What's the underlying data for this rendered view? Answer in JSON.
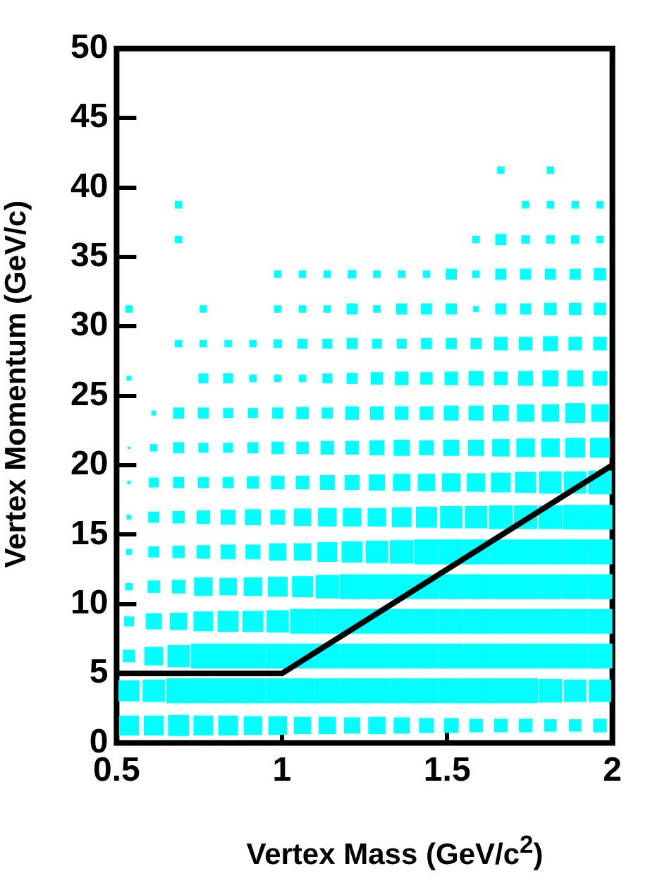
{
  "chart_data": {
    "type": "bubble",
    "xlabel": "Vertex Mass (GeV/c$^{2}$)",
    "ylabel": "Vertex Momentum (GeV/c)",
    "xlim": [
      0.5,
      2
    ],
    "xticks": [
      {
        "value": 0.5,
        "label": "0.5"
      },
      1,
      {
        "value": 1.5,
        "label": "1.5"
      },
      2
    ],
    "ylim": [
      0,
      50
    ],
    "yticks": [
      0,
      5,
      10,
      15,
      20,
      25,
      30,
      35,
      40,
      45,
      50
    ],
    "grid": false,
    "legend": false,
    "marker": "square",
    "x": [
      0.5375,
      0.6125,
      0.6875,
      0.7625,
      0.8375,
      0.9125,
      0.9875,
      1.0625,
      1.1375,
      1.2125,
      1.2875,
      1.3625,
      1.4375,
      1.5125,
      1.5875,
      1.6625,
      1.7375,
      1.8125,
      1.8875,
      1.9625
    ],
    "series": [
      {
        "color": "#00ffff",
        "values": [
          1.25,
          1.25,
          1.25,
          1.25,
          1.25,
          1.25,
          1.25,
          1.25,
          1.25,
          1.25,
          1.25,
          1.25,
          1.25,
          1.25,
          1.25,
          1.25,
          1.25,
          1.25,
          1.25,
          1.25
        ],
        "sizes": [
          0.64,
          0.64,
          0.72,
          0.64,
          0.64,
          0.56,
          0.56,
          0.49,
          0.49,
          0.42,
          0.49,
          0.42,
          0.36,
          0.36,
          0.3,
          0.3,
          0.3,
          0.25,
          0.25,
          0.3
        ]
      },
      {
        "color": "#00ffff",
        "values": [
          3.75,
          3.75,
          3.75,
          3.75,
          3.75,
          3.75,
          3.75,
          3.75,
          3.75,
          3.75,
          3.75,
          3.75,
          3.75,
          3.75,
          3.75,
          3.75,
          3.75,
          3.75,
          3.75,
          3.75
        ],
        "sizes": [
          0.72,
          0.81,
          1,
          1,
          1,
          1,
          1,
          1,
          1,
          1,
          1,
          1,
          1,
          1,
          1,
          1,
          1,
          0.9,
          0.81,
          0.81
        ]
      },
      {
        "color": "#00ffff",
        "values": [
          6.25,
          6.25,
          6.25,
          6.25,
          6.25,
          6.25,
          6.25,
          6.25,
          6.25,
          6.25,
          6.25,
          6.25,
          6.25,
          6.25,
          6.25,
          6.25,
          6.25,
          6.25,
          6.25,
          6.25
        ],
        "sizes": [
          0.25,
          0.56,
          0.81,
          1,
          1,
          1,
          1,
          1,
          1,
          1,
          1,
          1,
          1,
          1,
          1,
          1,
          1,
          1,
          1,
          1
        ]
      },
      {
        "color": "#00ffff",
        "values": [
          8.75,
          8.75,
          8.75,
          8.75,
          8.75,
          8.75,
          8.75,
          8.75,
          8.75,
          8.75,
          8.75,
          8.75,
          8.75,
          8.75,
          8.75,
          8.75,
          8.75,
          8.75,
          8.75,
          8.75
        ],
        "sizes": [
          0.16,
          0.42,
          0.49,
          0.64,
          0.72,
          0.72,
          0.81,
          1,
          1,
          1,
          1,
          1,
          1,
          1,
          1,
          1,
          1,
          1,
          1,
          1
        ]
      },
      {
        "color": "#00ffff",
        "values": [
          11.25,
          11.25,
          11.25,
          11.25,
          11.25,
          11.25,
          11.25,
          11.25,
          11.25,
          11.25,
          11.25,
          11.25,
          11.25,
          11.25,
          11.25,
          11.25,
          11.25,
          11.25,
          11.25,
          11.25
        ],
        "sizes": [
          0.09,
          0.25,
          0.3,
          0.56,
          0.49,
          0.56,
          0.64,
          0.72,
          0.9,
          1,
          1,
          1,
          1,
          1,
          1,
          1,
          1,
          1,
          1,
          1
        ]
      },
      {
        "color": "#00ffff",
        "values": [
          13.75,
          13.75,
          13.75,
          13.75,
          13.75,
          13.75,
          13.75,
          13.75,
          13.75,
          13.75,
          13.75,
          13.75,
          13.75,
          13.75,
          13.75,
          13.75,
          13.75,
          13.75,
          13.75,
          13.75
        ],
        "sizes": [
          0.06,
          0.2,
          0.25,
          0.3,
          0.36,
          0.36,
          0.49,
          0.49,
          0.64,
          0.72,
          0.81,
          0.9,
          1,
          1,
          1,
          1,
          1,
          1,
          1,
          1
        ]
      },
      {
        "color": "#00ffff",
        "values": [
          16.25,
          16.25,
          16.25,
          16.25,
          16.25,
          16.25,
          16.25,
          16.25,
          16.25,
          16.25,
          16.25,
          16.25,
          16.25,
          16.25,
          16.25,
          16.25,
          16.25,
          16.25,
          16.25,
          16.25
        ],
        "sizes": [
          0.04,
          0.2,
          0.25,
          0.3,
          0.36,
          0.42,
          0.36,
          0.49,
          0.56,
          0.56,
          0.56,
          0.64,
          0.72,
          0.81,
          0.81,
          0.9,
          0.9,
          0.9,
          1,
          1
        ]
      },
      {
        "color": "#00ffff",
        "values": [
          18.75,
          18.75,
          18.75,
          18.75,
          18.75,
          18.75,
          18.75,
          18.75,
          18.75,
          18.75,
          18.75,
          18.75,
          18.75,
          18.75,
          18.75,
          18.75,
          18.75,
          18.75,
          18.75,
          18.75
        ],
        "sizes": [
          0.02,
          0.16,
          0.2,
          0.2,
          0.2,
          0.25,
          0.3,
          0.3,
          0.36,
          0.36,
          0.42,
          0.49,
          0.49,
          0.56,
          0.56,
          0.64,
          0.72,
          0.81,
          0.81,
          0.9
        ]
      },
      {
        "color": "#00ffff",
        "values": [
          21.25,
          21.25,
          21.25,
          21.25,
          21.25,
          21.25,
          21.25,
          21.25,
          21.25,
          21.25,
          21.25,
          21.25,
          21.25,
          21.25,
          21.25,
          21.25,
          21.25,
          21.25,
          21.25,
          21.25
        ],
        "sizes": [
          0.01,
          0.09,
          0.2,
          0.16,
          0.16,
          0.2,
          0.25,
          0.25,
          0.3,
          0.3,
          0.36,
          0.42,
          0.36,
          0.42,
          0.42,
          0.49,
          0.56,
          0.56,
          0.64,
          0.64
        ]
      },
      {
        "color": "#00ffff",
        "values": [
          null,
          23.75,
          23.75,
          23.75,
          23.75,
          23.75,
          23.75,
          23.75,
          23.75,
          23.75,
          23.75,
          23.75,
          23.75,
          23.75,
          23.75,
          23.75,
          23.75,
          23.75,
          23.75,
          23.75
        ],
        "sizes": [
          null,
          0.04,
          0.2,
          0.2,
          0.16,
          0.16,
          0.2,
          0.25,
          0.2,
          0.3,
          0.3,
          0.3,
          0.3,
          0.36,
          0.36,
          0.42,
          0.49,
          0.49,
          0.64,
          0.49
        ]
      },
      {
        "color": "#00ffff",
        "values": [
          26.25,
          null,
          null,
          26.25,
          26.25,
          26.25,
          26.25,
          26.25,
          26.25,
          26.25,
          26.25,
          26.25,
          26.25,
          26.25,
          26.25,
          26.25,
          26.25,
          26.25,
          26.25,
          26.25
        ],
        "sizes": [
          0.04,
          null,
          null,
          0.16,
          0.16,
          0.09,
          0.09,
          0.09,
          0.16,
          0.2,
          0.25,
          0.3,
          0.25,
          0.3,
          0.36,
          0.3,
          0.36,
          0.42,
          0.42,
          0.36
        ]
      },
      {
        "color": "#00ffff",
        "values": [
          null,
          null,
          28.75,
          28.75,
          28.75,
          28.75,
          28.75,
          28.75,
          28.75,
          28.75,
          28.75,
          28.75,
          28.75,
          28.75,
          28.75,
          28.75,
          28.75,
          28.75,
          28.75,
          28.75
        ],
        "sizes": [
          null,
          null,
          0.09,
          0.09,
          0.09,
          0.09,
          0.12,
          0.16,
          0.16,
          0.2,
          0.16,
          0.16,
          0.2,
          0.2,
          0.2,
          0.3,
          0.3,
          0.36,
          0.3,
          0.3
        ]
      },
      {
        "color": "#00ffff",
        "values": [
          31.25,
          null,
          null,
          31.25,
          null,
          null,
          31.25,
          31.25,
          31.25,
          31.25,
          31.25,
          31.25,
          31.25,
          31.25,
          31.25,
          31.25,
          31.25,
          31.25,
          31.25,
          31.25
        ],
        "sizes": [
          0.09,
          null,
          null,
          0.09,
          null,
          null,
          0.09,
          0.09,
          0.09,
          0.2,
          0.09,
          0.2,
          0.2,
          0.2,
          0.06,
          0.2,
          0.2,
          0.25,
          0.25,
          0.25
        ]
      },
      {
        "color": "#00ffff",
        "values": [
          null,
          null,
          null,
          null,
          null,
          null,
          33.75,
          33.75,
          33.75,
          33.75,
          33.75,
          33.75,
          33.75,
          33.75,
          33.75,
          33.75,
          33.75,
          33.75,
          33.75,
          33.75
        ],
        "sizes": [
          null,
          null,
          null,
          null,
          null,
          null,
          0.09,
          0.09,
          0.09,
          0.12,
          0.09,
          0.09,
          0.09,
          0.2,
          0.09,
          0.2,
          0.2,
          0.2,
          0.2,
          0.25
        ]
      },
      {
        "color": "#00ffff",
        "values": [
          null,
          null,
          36.25,
          null,
          null,
          null,
          null,
          null,
          null,
          null,
          null,
          null,
          null,
          null,
          36.25,
          36.25,
          36.25,
          36.25,
          36.25,
          36.25
        ],
        "sizes": [
          null,
          null,
          0.09,
          null,
          null,
          null,
          null,
          null,
          null,
          null,
          null,
          null,
          null,
          null,
          0.09,
          0.2,
          0.12,
          0.12,
          0.12,
          0.09
        ]
      },
      {
        "color": "#00ffff",
        "values": [
          null,
          null,
          38.75,
          null,
          null,
          null,
          null,
          null,
          null,
          null,
          null,
          null,
          null,
          null,
          null,
          null,
          38.75,
          38.75,
          38.75,
          38.75
        ],
        "sizes": [
          null,
          null,
          0.09,
          null,
          null,
          null,
          null,
          null,
          null,
          null,
          null,
          null,
          null,
          null,
          null,
          null,
          0.09,
          0.09,
          0.09,
          0.09
        ]
      },
      {
        "color": "#00ffff",
        "values": [
          null,
          null,
          null,
          null,
          null,
          null,
          null,
          null,
          null,
          null,
          null,
          null,
          null,
          null,
          null,
          41.25,
          null,
          41.25,
          null,
          null
        ],
        "sizes": [
          null,
          null,
          null,
          null,
          null,
          null,
          null,
          null,
          null,
          null,
          null,
          null,
          null,
          null,
          null,
          0.09,
          null,
          0.09,
          null,
          null
        ]
      },
      {
        "type": "line",
        "marker": "none",
        "color": "#000000",
        "x": [
          0.5,
          1,
          2
        ],
        "values": [
          5,
          5,
          20
        ]
      }
    ]
  }
}
